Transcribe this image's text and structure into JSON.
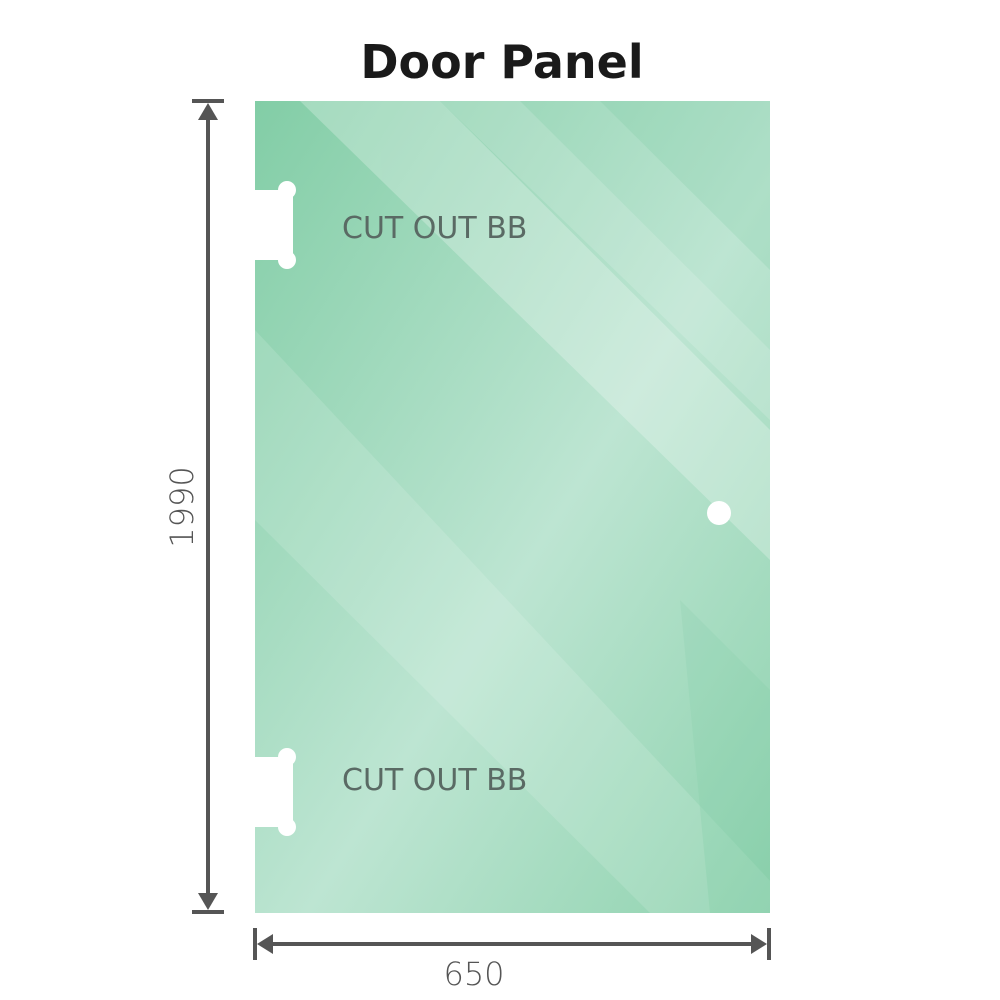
{
  "title": "Door Panel",
  "dimensions": {
    "height": "1990",
    "width": "650"
  },
  "cutouts": [
    {
      "label": "CUT OUT BB"
    },
    {
      "label": "CUT OUT BB"
    }
  ],
  "colors": {
    "glass": "#86cfa9",
    "glass_light": "#bfe6d4",
    "dimension_line": "#555555",
    "cutout": "#ffffff"
  }
}
